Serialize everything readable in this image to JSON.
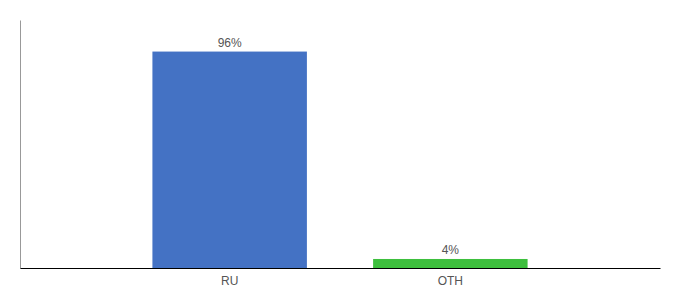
{
  "chart_data": {
    "type": "bar",
    "categories": [
      "RU",
      "OTH"
    ],
    "values": [
      96,
      4
    ],
    "value_labels": [
      "96%",
      "4%"
    ],
    "colors": [
      "#4472c4",
      "#3dbf3d"
    ],
    "ylim": [
      0,
      110
    ],
    "data_labels": true,
    "tick_labels": "x"
  }
}
